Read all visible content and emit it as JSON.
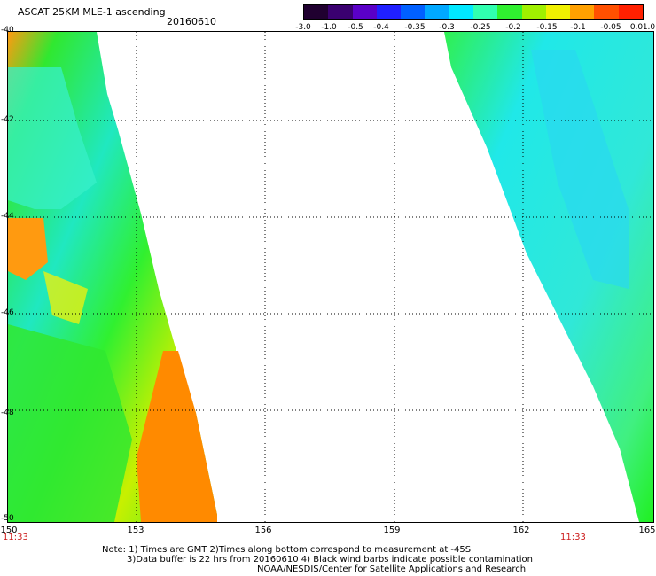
{
  "header": {
    "title": "ASCAT 25KM MLE-1 ascending",
    "date": "20160610"
  },
  "colorbar": {
    "labels": [
      "-3.0",
      "-1.0",
      "-0.5",
      "-0.4",
      "-0.35",
      "-0.3",
      "-0.25",
      "-0.2",
      "-0.15",
      "-0.1",
      "-0.05",
      "0.0",
      "1.0"
    ],
    "colors": [
      "#200030",
      "#3a0070",
      "#5a00c8",
      "#2020ff",
      "#0060ff",
      "#00a8ff",
      "#00e8ff",
      "#30ffb0",
      "#30f030",
      "#a0f000",
      "#f0f000",
      "#ffa000",
      "#ff5000",
      "#ff2000"
    ]
  },
  "map": {
    "y_axis_labels": [
      "-40",
      "-42",
      "-44",
      "-46",
      "-48",
      "-50"
    ],
    "x_axis_labels": [
      "150",
      "153",
      "156",
      "159",
      "162",
      "165"
    ],
    "time_labels": {
      "left": "11:33",
      "right": "11:33"
    },
    "swaths": [
      {
        "name": "western swath",
        "dominant": "green / yellow / orange",
        "east_edge": "orange tongue near 153.5E -48 to -50"
      },
      {
        "name": "eastern swath",
        "dominant": "cyan / green",
        "west_edge": "diagonal from 160E -40 to 164.8E -50"
      }
    ]
  },
  "notes": {
    "line1": "Note: 1) Times are GMT 2)Times along bottom correspond to measurement at -45S",
    "line2": "3)Data buffer is 22 hrs from 20160610 4) Black wind barbs indicate possible contamination",
    "line3": "NOAA/NESDIS/Center for Satellite Applications and Research"
  }
}
